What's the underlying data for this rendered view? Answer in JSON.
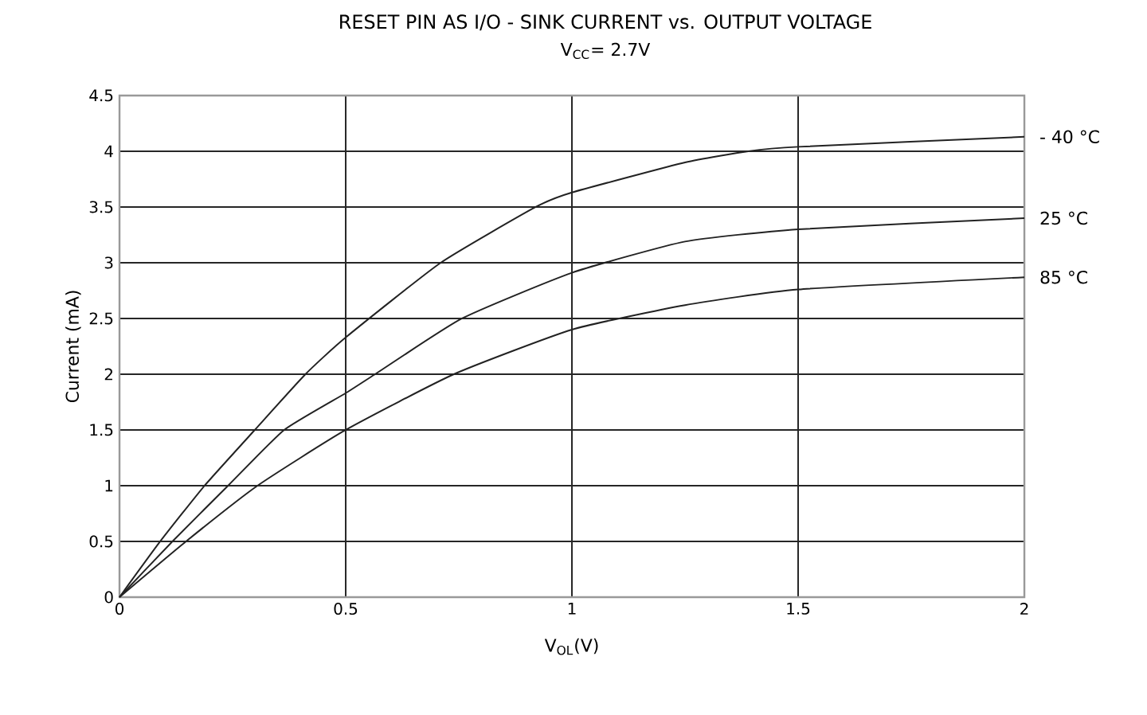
{
  "chart_data": {
    "type": "line",
    "title": "RESET PIN AS I/O - SINK CURRENT vs. OUTPUT VOLTAGE",
    "subtitle": "V$_{CC}$= 2.7V",
    "xlabel": "V$_{OL}$(V)",
    "ylabel": "Current (mA)",
    "xlim": [
      0,
      2
    ],
    "ylim": [
      0,
      4.5
    ],
    "xticks": [
      0,
      0.5,
      1,
      1.5,
      2
    ],
    "yticks": [
      0,
      0.5,
      1,
      1.5,
      2,
      2.5,
      3,
      3.5,
      4,
      4.5
    ],
    "grid": true,
    "legend": false,
    "marker": "none",
    "line_style": "solid",
    "series": [
      {
        "name": "- 40 °C",
        "color": "#222222",
        "x": [
          0,
          0.09,
          0.188,
          0.299,
          0.411,
          0.5,
          0.71,
          0.92,
          1.0,
          1.25,
          1.39,
          1.5,
          2.0
        ],
        "values": [
          0,
          0.5,
          1,
          1.5,
          2,
          2.33,
          3,
          3.5,
          3.63,
          3.9,
          4,
          4.04,
          4.13
        ]
      },
      {
        "name": "25 °C",
        "color": "#222222",
        "x": [
          0,
          0.117,
          0.24,
          0.364,
          0.5,
          0.565,
          0.757,
          1.0,
          1.25,
          1.5,
          2.0
        ],
        "values": [
          0,
          0.5,
          1,
          1.5,
          1.83,
          2,
          2.5,
          2.91,
          3.19,
          3.3,
          3.4
        ]
      },
      {
        "name": "85 °C",
        "color": "#222222",
        "x": [
          0,
          0.147,
          0.305,
          0.5,
          0.739,
          1.0,
          1.25,
          1.5,
          2.0
        ],
        "values": [
          0,
          0.5,
          1,
          1.5,
          2,
          2.4,
          2.62,
          2.76,
          2.87
        ]
      }
    ]
  }
}
